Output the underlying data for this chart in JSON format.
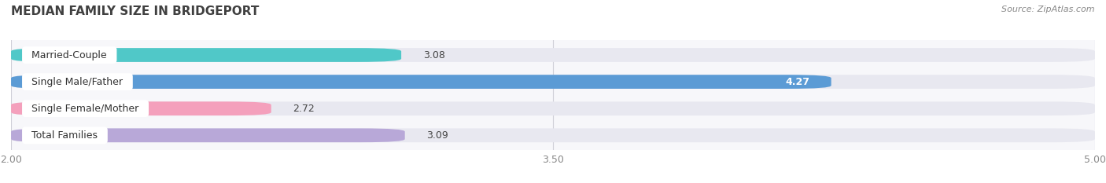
{
  "title": "MEDIAN FAMILY SIZE IN BRIDGEPORT",
  "source": "Source: ZipAtlas.com",
  "categories": [
    "Married-Couple",
    "Single Male/Father",
    "Single Female/Mother",
    "Total Families"
  ],
  "values": [
    3.08,
    4.27,
    2.72,
    3.09
  ],
  "bar_colors": [
    "#50c8c8",
    "#5b9bd5",
    "#f4a0bc",
    "#b8a8d8"
  ],
  "bar_bg_color": "#e8e8f0",
  "xlim_min": 2.0,
  "xlim_max": 5.0,
  "xticks": [
    2.0,
    3.5,
    5.0
  ],
  "xtick_labels": [
    "2.00",
    "3.50",
    "5.00"
  ],
  "background_color": "#ffffff",
  "plot_bg_color": "#f7f7fa",
  "title_fontsize": 11,
  "label_fontsize": 9,
  "value_fontsize": 9,
  "bar_height": 0.52,
  "value_colors": [
    "#444444",
    "#ffffff",
    "#444444",
    "#444444"
  ],
  "value_ha": [
    "left",
    "right",
    "left",
    "left"
  ],
  "value_offsets": [
    0.06,
    -0.06,
    0.06,
    0.06
  ]
}
